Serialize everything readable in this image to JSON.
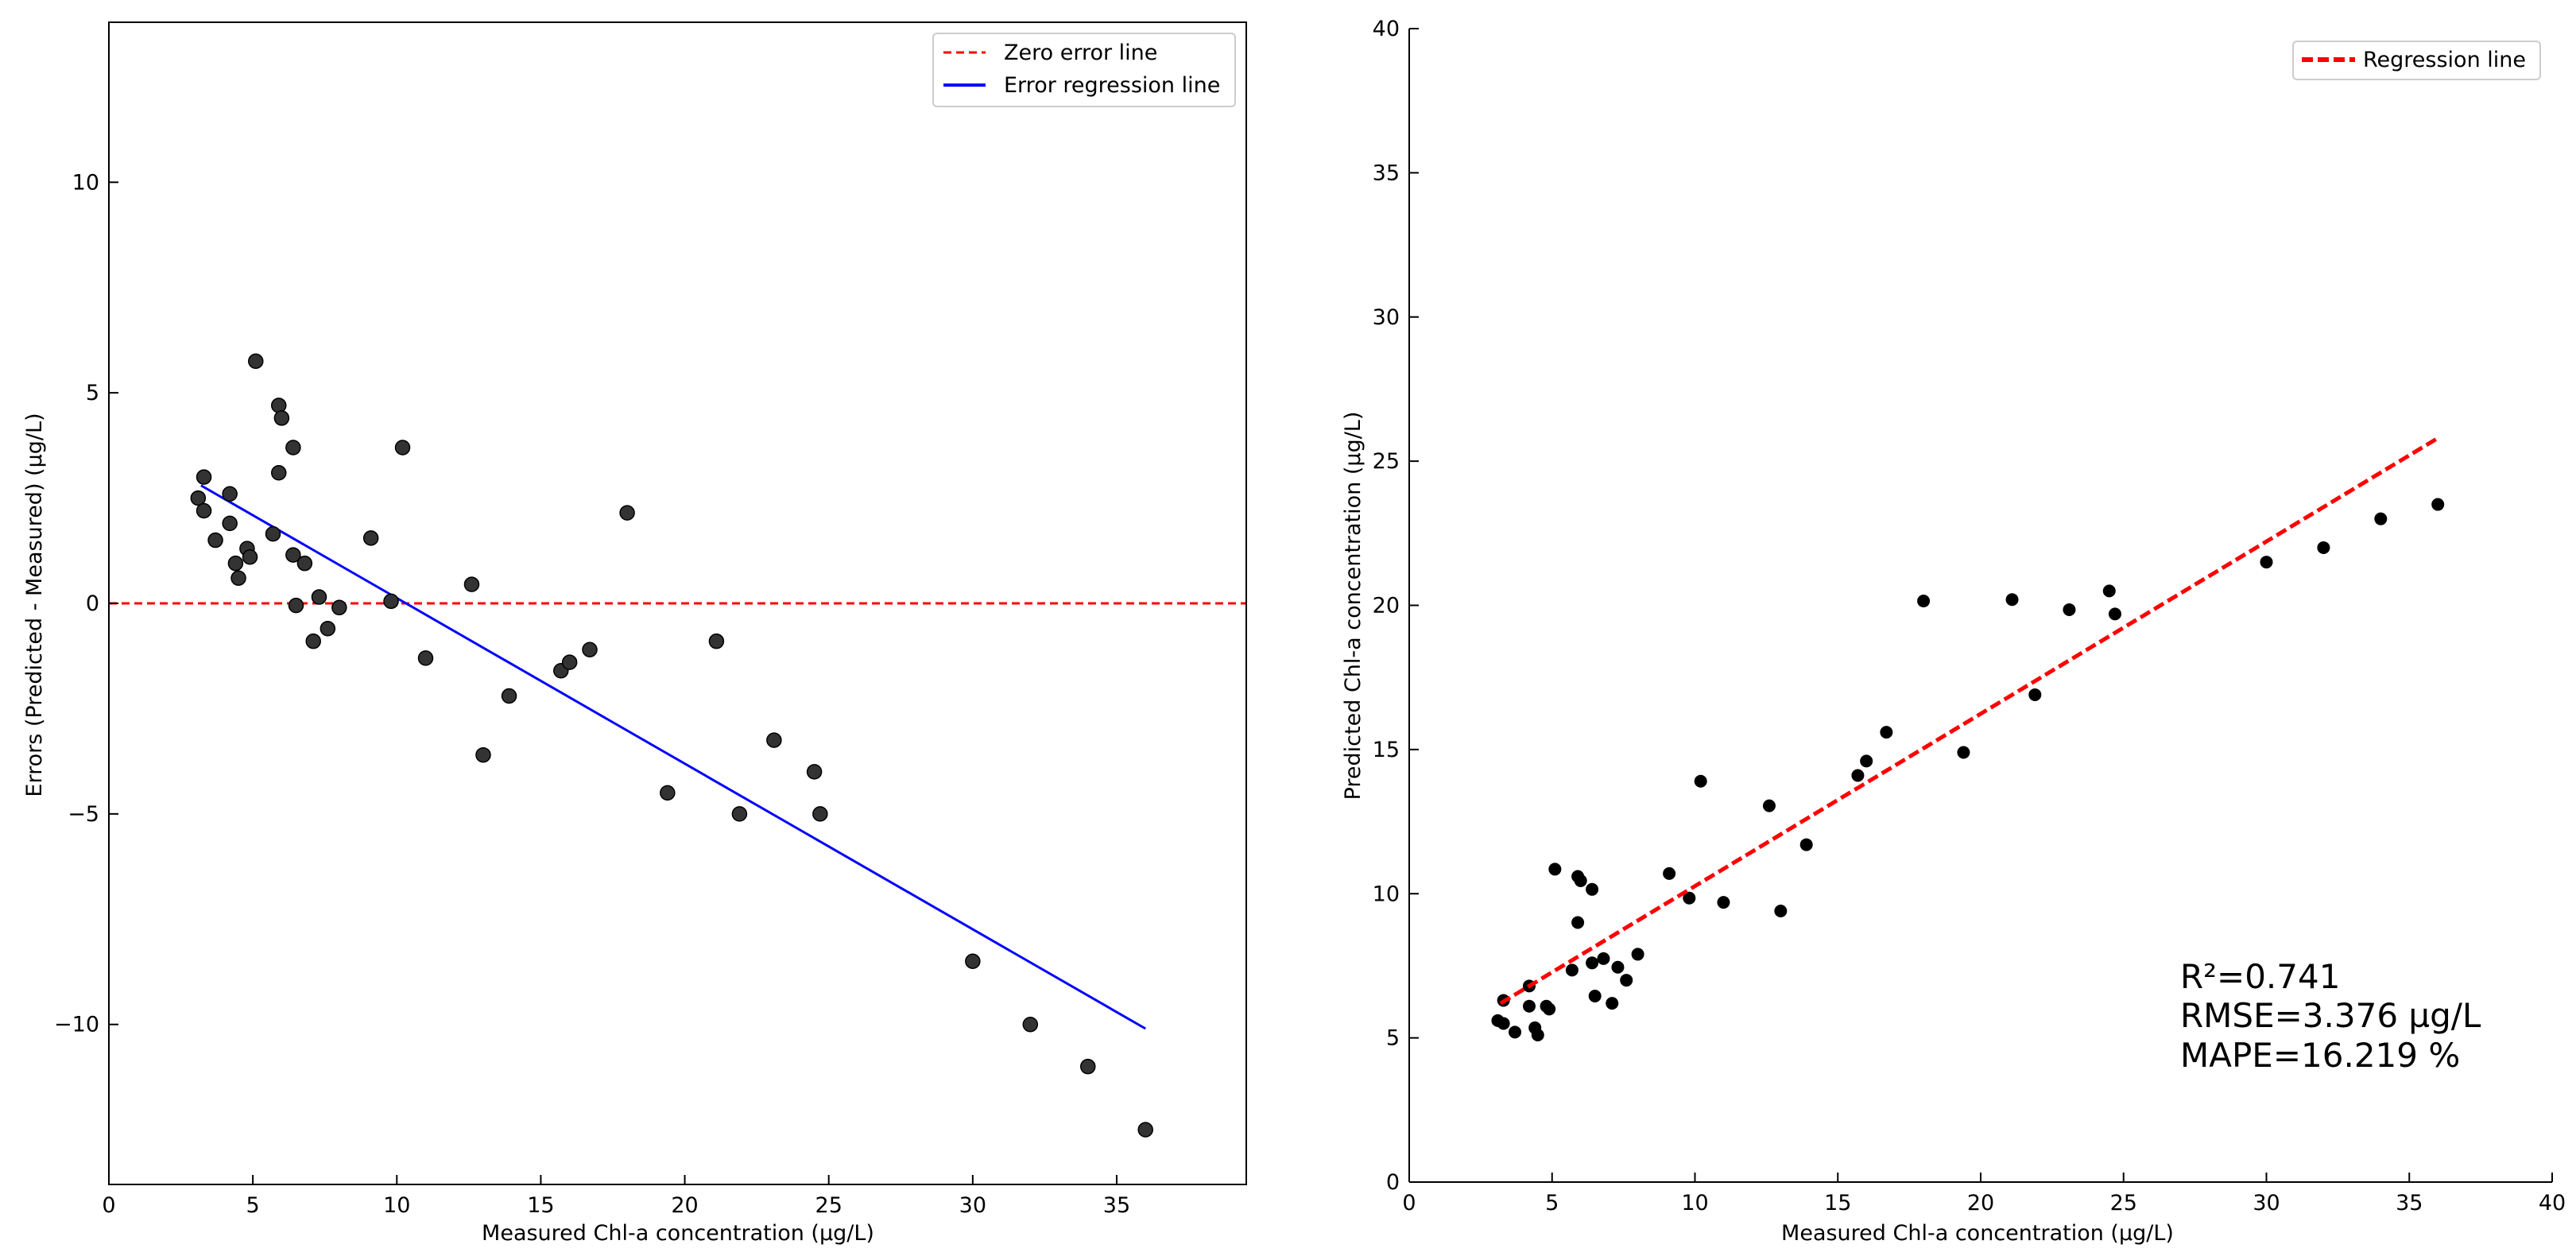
{
  "chart_data": [
    {
      "type": "scatter",
      "title": "",
      "xlabel": "Measured Chl-a concentration (µg/L)",
      "ylabel": "Errors (Predicted - Measured) (µg/L)",
      "xlim": [
        0,
        39.5
      ],
      "ylim": [
        -13.8,
        13.8
      ],
      "xticks": [
        0,
        5,
        10,
        15,
        20,
        25,
        30,
        35
      ],
      "xtick_labels": [
        "0",
        "5",
        "10",
        "15",
        "20",
        "25",
        "30",
        "35"
      ],
      "yticks": [
        -10,
        -5,
        0,
        5,
        10
      ],
      "ytick_labels": [
        "−10",
        "−5",
        "0",
        "5",
        "10"
      ],
      "legend": {
        "position": "top-right",
        "entries": [
          {
            "label": "Zero error line",
            "style": "dashed",
            "color": "#ff0000"
          },
          {
            "label": "Error regression line",
            "style": "solid",
            "color": "#0000ff"
          }
        ]
      },
      "reference_line": {
        "name": "Zero error line",
        "y": 0,
        "color": "#ff0000",
        "style": "dashed"
      },
      "regression_line": {
        "name": "Error regression line",
        "x": [
          3.2,
          36.0
        ],
        "y": [
          2.8,
          -10.1
        ],
        "color": "#0000ff"
      },
      "point_color": "#333333",
      "points": [
        {
          "x": 3.1,
          "y": 2.5
        },
        {
          "x": 3.3,
          "y": 2.2
        },
        {
          "x": 3.3,
          "y": 3.0
        },
        {
          "x": 3.7,
          "y": 1.5
        },
        {
          "x": 4.2,
          "y": 2.6
        },
        {
          "x": 4.2,
          "y": 1.9
        },
        {
          "x": 4.4,
          "y": 0.95
        },
        {
          "x": 4.5,
          "y": 0.6
        },
        {
          "x": 4.8,
          "y": 1.3
        },
        {
          "x": 4.9,
          "y": 1.1
        },
        {
          "x": 5.1,
          "y": 5.75
        },
        {
          "x": 5.7,
          "y": 1.65
        },
        {
          "x": 5.9,
          "y": 4.7
        },
        {
          "x": 5.9,
          "y": 3.1
        },
        {
          "x": 6.0,
          "y": 4.4
        },
        {
          "x": 6.4,
          "y": 3.7
        },
        {
          "x": 6.4,
          "y": 1.15
        },
        {
          "x": 6.5,
          "y": -0.05
        },
        {
          "x": 6.8,
          "y": 0.95
        },
        {
          "x": 7.1,
          "y": -0.9
        },
        {
          "x": 7.3,
          "y": 0.15
        },
        {
          "x": 7.6,
          "y": -0.6
        },
        {
          "x": 8.0,
          "y": -0.1
        },
        {
          "x": 9.1,
          "y": 1.55
        },
        {
          "x": 9.8,
          "y": 0.05
        },
        {
          "x": 10.2,
          "y": 3.7
        },
        {
          "x": 11.0,
          "y": -1.3
        },
        {
          "x": 12.6,
          "y": 0.45
        },
        {
          "x": 13.0,
          "y": -3.6
        },
        {
          "x": 13.9,
          "y": -2.2
        },
        {
          "x": 15.7,
          "y": -1.6
        },
        {
          "x": 16.0,
          "y": -1.4
        },
        {
          "x": 16.7,
          "y": -1.1
        },
        {
          "x": 18.0,
          "y": 2.15
        },
        {
          "x": 19.4,
          "y": -4.5
        },
        {
          "x": 21.1,
          "y": -0.9
        },
        {
          "x": 21.9,
          "y": -5.0
        },
        {
          "x": 23.1,
          "y": -3.25
        },
        {
          "x": 24.5,
          "y": -4.0
        },
        {
          "x": 24.7,
          "y": -5.0
        },
        {
          "x": 30.0,
          "y": -8.5
        },
        {
          "x": 32.0,
          "y": -10.0
        },
        {
          "x": 34.0,
          "y": -11.0
        },
        {
          "x": 36.0,
          "y": -12.5
        }
      ]
    },
    {
      "type": "scatter",
      "title": "",
      "xlabel": "Measured Chl-a concentration (µg/L)",
      "ylabel": "Predicted Chl-a concentration (µg/L)",
      "xlim": [
        0,
        40
      ],
      "ylim": [
        0,
        40
      ],
      "xticks": [
        0,
        5,
        10,
        15,
        20,
        25,
        30,
        35,
        40
      ],
      "xtick_labels": [
        "0",
        "5",
        "10",
        "15",
        "20",
        "25",
        "30",
        "35",
        "40"
      ],
      "yticks": [
        0,
        5,
        10,
        15,
        20,
        25,
        30,
        35,
        40
      ],
      "ytick_labels": [
        "0",
        "5",
        "10",
        "15",
        "20",
        "25",
        "30",
        "35",
        "40"
      ],
      "legend": {
        "position": "top-right",
        "entries": [
          {
            "label": "Regression line",
            "style": "dashed",
            "color": "#ff0000"
          }
        ]
      },
      "regression_line": {
        "name": "Regression line",
        "x": [
          3.2,
          36.0
        ],
        "y": [
          6.2,
          25.8
        ],
        "color": "#ff0000",
        "style": "dashed"
      },
      "point_color": "#000000",
      "points": [
        {
          "x": 3.1,
          "y": 5.6
        },
        {
          "x": 3.3,
          "y": 5.5
        },
        {
          "x": 3.3,
          "y": 6.3
        },
        {
          "x": 3.7,
          "y": 5.2
        },
        {
          "x": 4.2,
          "y": 6.8
        },
        {
          "x": 4.2,
          "y": 6.1
        },
        {
          "x": 4.4,
          "y": 5.35
        },
        {
          "x": 4.5,
          "y": 5.1
        },
        {
          "x": 4.8,
          "y": 6.1
        },
        {
          "x": 4.9,
          "y": 6.0
        },
        {
          "x": 5.1,
          "y": 10.85
        },
        {
          "x": 5.7,
          "y": 7.35
        },
        {
          "x": 5.9,
          "y": 10.6
        },
        {
          "x": 5.9,
          "y": 9.0
        },
        {
          "x": 6.0,
          "y": 10.45
        },
        {
          "x": 6.4,
          "y": 10.15
        },
        {
          "x": 6.4,
          "y": 7.6
        },
        {
          "x": 6.5,
          "y": 6.45
        },
        {
          "x": 6.8,
          "y": 7.75
        },
        {
          "x": 7.1,
          "y": 6.2
        },
        {
          "x": 7.3,
          "y": 7.45
        },
        {
          "x": 7.6,
          "y": 7.0
        },
        {
          "x": 8.0,
          "y": 7.9
        },
        {
          "x": 9.1,
          "y": 10.7
        },
        {
          "x": 9.8,
          "y": 9.85
        },
        {
          "x": 10.2,
          "y": 13.9
        },
        {
          "x": 11.0,
          "y": 9.7
        },
        {
          "x": 12.6,
          "y": 13.05
        },
        {
          "x": 13.0,
          "y": 9.4
        },
        {
          "x": 13.9,
          "y": 11.7
        },
        {
          "x": 15.7,
          "y": 14.1
        },
        {
          "x": 16.0,
          "y": 14.6
        },
        {
          "x": 16.7,
          "y": 15.6
        },
        {
          "x": 18.0,
          "y": 20.15
        },
        {
          "x": 19.4,
          "y": 14.9
        },
        {
          "x": 21.1,
          "y": 20.2
        },
        {
          "x": 21.9,
          "y": 16.9
        },
        {
          "x": 23.1,
          "y": 19.85
        },
        {
          "x": 24.5,
          "y": 20.5
        },
        {
          "x": 24.7,
          "y": 19.7
        },
        {
          "x": 30.0,
          "y": 21.5
        },
        {
          "x": 32.0,
          "y": 22.0
        },
        {
          "x": 34.0,
          "y": 23.0
        },
        {
          "x": 36.0,
          "y": 23.5
        }
      ],
      "annotations": [
        "R²=0.741",
        "RMSE=3.376 µg/L",
        "MAPE=16.219 %"
      ]
    }
  ]
}
